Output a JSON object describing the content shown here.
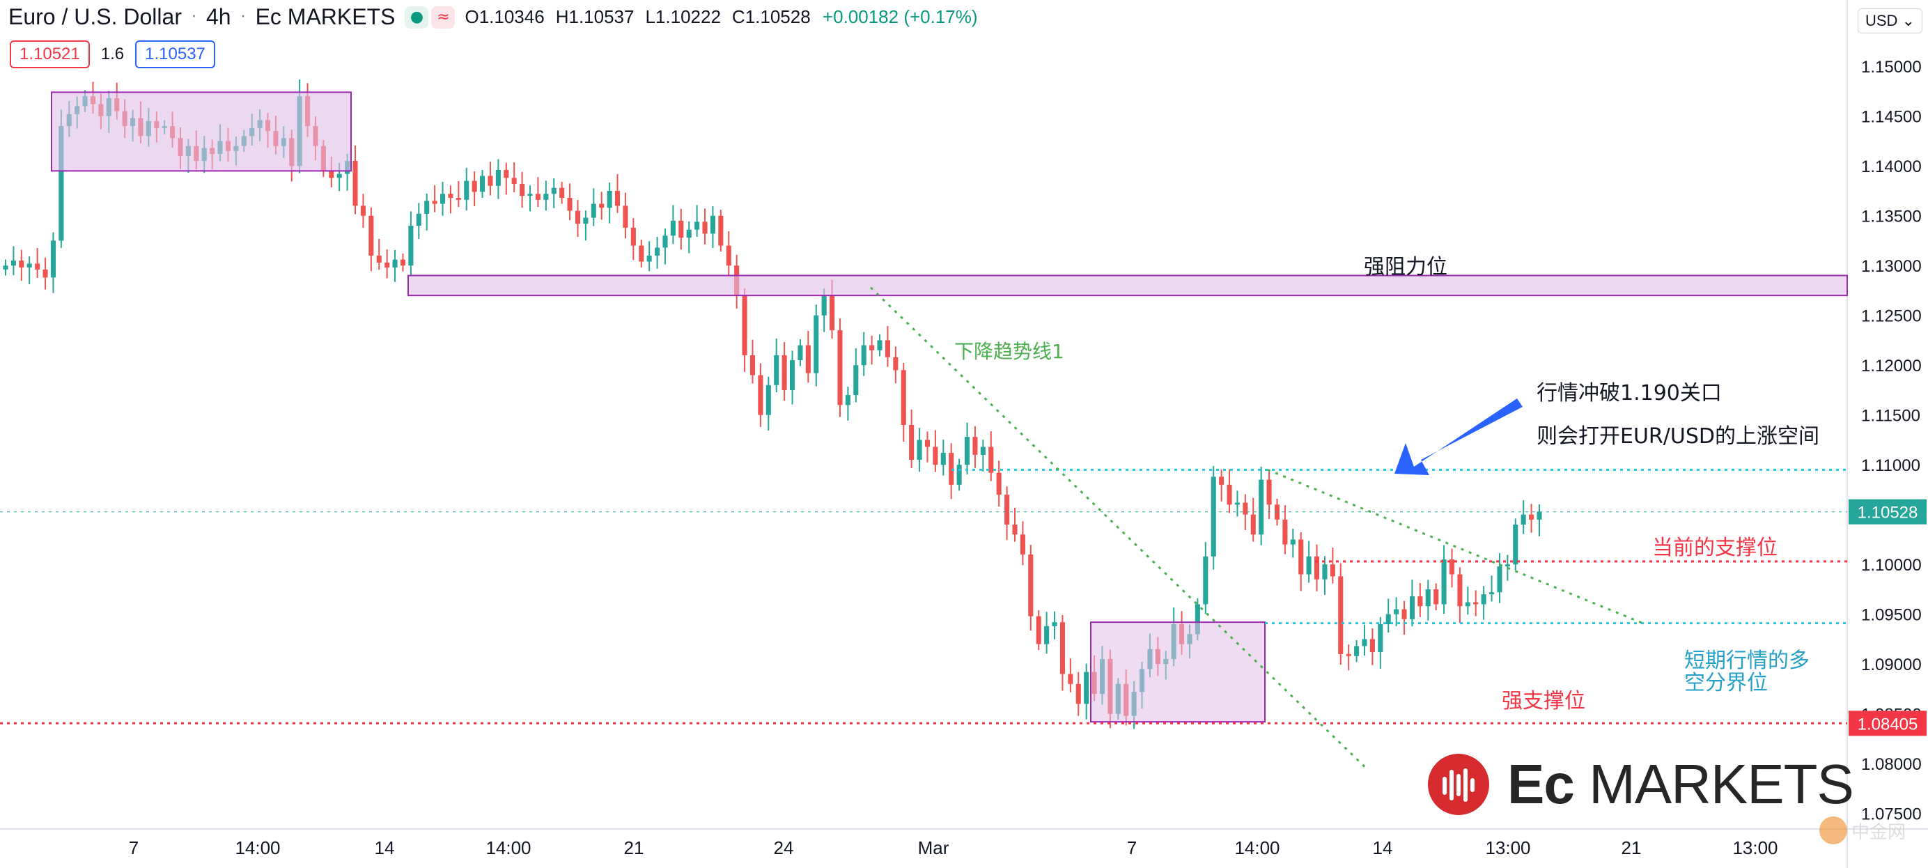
{
  "header": {
    "symbol": "Euro / U.S. Dollar",
    "interval": "4h",
    "source": "Ec MARKETS",
    "open": "O1.10346",
    "high": "H1.10537",
    "low": "L1.10222",
    "close": "C1.10528",
    "change": "+0.00182 (+0.17%)",
    "sell_price": "1.10521",
    "spread": "1.6",
    "buy_price": "1.10537",
    "currency": "USD"
  },
  "price_axis": {
    "ticks": [
      "1.15000",
      "1.14500",
      "1.14000",
      "1.13500",
      "1.13000",
      "1.12500",
      "1.12000",
      "1.11500",
      "1.11000",
      "1.10500",
      "1.10000",
      "1.09500",
      "1.09000",
      "1.08500",
      "1.08000",
      "1.07500"
    ],
    "current_label": "1.10528",
    "support_label": "1.08405"
  },
  "time_axis": {
    "labels": [
      "7",
      "14:00",
      "14",
      "14:00",
      "21",
      "24",
      "Mar",
      "7",
      "14:00",
      "14",
      "13:00",
      "21",
      "13:00"
    ]
  },
  "annotations": {
    "strong_resistance": "强阻力位",
    "downtrend_line": "下降趋势线1",
    "note_line1": "行情冲破1.190关口",
    "note_line2": "则会打开EUR/USD的上涨空间",
    "current_support": "当前的支撑位",
    "short_term_line1": "短期行情的多",
    "short_term_line2": "空分界位",
    "strong_support": "强支撑位"
  },
  "logo": {
    "text_bold": "Ec",
    "text_rest": " MARKETS"
  },
  "watermark": "中金网",
  "colors": {
    "up": "#26a69a",
    "down": "#ef5350",
    "zone": "#e1bee7",
    "zone_border": "#9c27b0",
    "trend": "#4caf50",
    "cyan": "#26c6da",
    "red_dot": "#f23645",
    "arrow": "#2962ff"
  },
  "chart_data": {
    "type": "candlestick",
    "title": "Euro / U.S. Dollar 4h",
    "ylim": [
      1.074,
      1.154
    ],
    "close_series": [
      1.13,
      1.1305,
      1.1298,
      1.1302,
      1.1296,
      1.1288,
      1.1325,
      1.144,
      1.1452,
      1.146,
      1.147,
      1.1462,
      1.145,
      1.1468,
      1.1455,
      1.144,
      1.1448,
      1.143,
      1.1445,
      1.1438,
      1.144,
      1.1428,
      1.141,
      1.142,
      1.1405,
      1.1418,
      1.1412,
      1.1425,
      1.1415,
      1.142,
      1.143,
      1.1438,
      1.1446,
      1.1435,
      1.142,
      1.1428,
      1.14,
      1.147,
      1.144,
      1.142,
      1.1395,
      1.1388,
      1.1392,
      1.1405,
      1.136,
      1.135,
      1.131,
      1.1303,
      1.1298,
      1.1306,
      1.13,
      1.134,
      1.1352,
      1.1365,
      1.1362,
      1.1372,
      1.1368,
      1.1366,
      1.1385,
      1.1374,
      1.139,
      1.138,
      1.1396,
      1.1388,
      1.1382,
      1.137,
      1.1372,
      1.1366,
      1.1372,
      1.1378,
      1.1368,
      1.1355,
      1.1342,
      1.1348,
      1.1362,
      1.1358,
      1.1375,
      1.136,
      1.1338,
      1.132,
      1.1304,
      1.131,
      1.1318,
      1.133,
      1.1345,
      1.1328,
      1.1336,
      1.1344,
      1.1332,
      1.135,
      1.132,
      1.13,
      1.127,
      1.121,
      1.119,
      1.115,
      1.118,
      1.121,
      1.1175,
      1.1205,
      1.122,
      1.1192,
      1.125,
      1.127,
      1.1235,
      1.116,
      1.117,
      1.12,
      1.122,
      1.1215,
      1.1225,
      1.1208,
      1.1195,
      1.114,
      1.1105,
      1.1125,
      1.1118,
      1.11,
      1.1112,
      1.108,
      1.11,
      1.1128,
      1.111,
      1.1118,
      1.1092,
      1.107,
      1.104,
      1.103,
      1.101,
      1.0948,
      1.092,
      1.0938,
      1.0942,
      1.089,
      1.088,
      1.086,
      1.0892,
      1.087,
      1.0905,
      1.085,
      1.088,
      1.0848,
      1.0872,
      1.0895,
      1.0915,
      1.09,
      1.0905,
      1.094,
      1.092,
      1.093,
      1.096,
      1.1008,
      1.1088,
      1.108,
      1.106,
      1.1062,
      1.105,
      1.103,
      1.1085,
      1.106,
      1.1045,
      1.102,
      1.1025,
      1.099,
      1.1008,
      1.0985,
      1.1,
      1.0988,
      1.091,
      1.0908,
      1.0918,
      1.0925,
      1.0912,
      1.094,
      1.095,
      1.0955,
      1.0945,
      1.0968,
      1.0958,
      1.0975,
      1.096,
      1.1005,
      1.099,
      1.0958,
      1.0962,
      1.096,
      1.097,
      1.0972,
      1.0998,
      1.1,
      1.104,
      1.105,
      1.1045,
      1.1053
    ],
    "xlabel": "",
    "ylabel": "",
    "levels": [
      {
        "label": "强阻力位",
        "value": 1.128,
        "style": "zone"
      },
      {
        "value": 1.1095,
        "style": "cyan-dotted"
      },
      {
        "label": "当前的支撑位",
        "value": 1.1003,
        "style": "red-dotted"
      },
      {
        "label": "短期行情的多空分界位",
        "value": 1.0941,
        "style": "cyan-dotted"
      },
      {
        "label": "强支撑位",
        "value": 1.08405,
        "style": "red-dotted"
      }
    ],
    "current_price": 1.10528
  }
}
